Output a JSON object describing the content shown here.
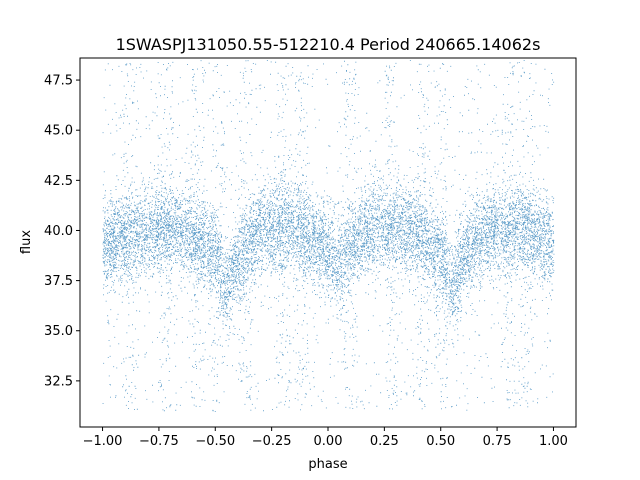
{
  "chart_data": {
    "type": "scatter",
    "title": "1SWASPJ131050.55-512210.4 Period 240665.14062s",
    "xlabel": "phase",
    "ylabel": "flux",
    "xlim": [
      -1.1,
      1.1
    ],
    "ylim": [
      30.2,
      48.6
    ],
    "x_ticks": [
      -1.0,
      -0.75,
      -0.5,
      -0.25,
      0.0,
      0.25,
      0.5,
      0.75,
      1.0
    ],
    "x_tick_labels": [
      "−1.00",
      "−0.75",
      "−0.50",
      "−0.25",
      "0.00",
      "0.25",
      "0.50",
      "0.75",
      "1.00"
    ],
    "y_ticks": [
      32.5,
      35.0,
      37.5,
      40.0,
      42.5,
      45.0,
      47.5
    ],
    "y_tick_labels": [
      "32.5",
      "35.0",
      "37.5",
      "40.0",
      "42.5",
      "45.0",
      "47.5"
    ],
    "grid": false,
    "series_color": "#1f77b4",
    "light_curve_profile": {
      "phase": [
        -1.0,
        -0.9,
        -0.8,
        -0.7,
        -0.6,
        -0.5,
        -0.45,
        -0.4,
        -0.3,
        -0.2,
        -0.1,
        0.0,
        0.05,
        0.1,
        0.2,
        0.3,
        0.4,
        0.5,
        0.55,
        0.6,
        0.7,
        0.8,
        0.9,
        1.0
      ],
      "flux": [
        39.3,
        39.6,
        40.0,
        40.2,
        39.8,
        38.8,
        37.0,
        38.6,
        40.0,
        40.2,
        39.8,
        39.0,
        38.3,
        39.2,
        40.2,
        40.3,
        39.9,
        38.8,
        37.0,
        38.7,
        40.0,
        40.2,
        39.9,
        39.3
      ],
      "scatter_sigma": 1.1
    }
  }
}
